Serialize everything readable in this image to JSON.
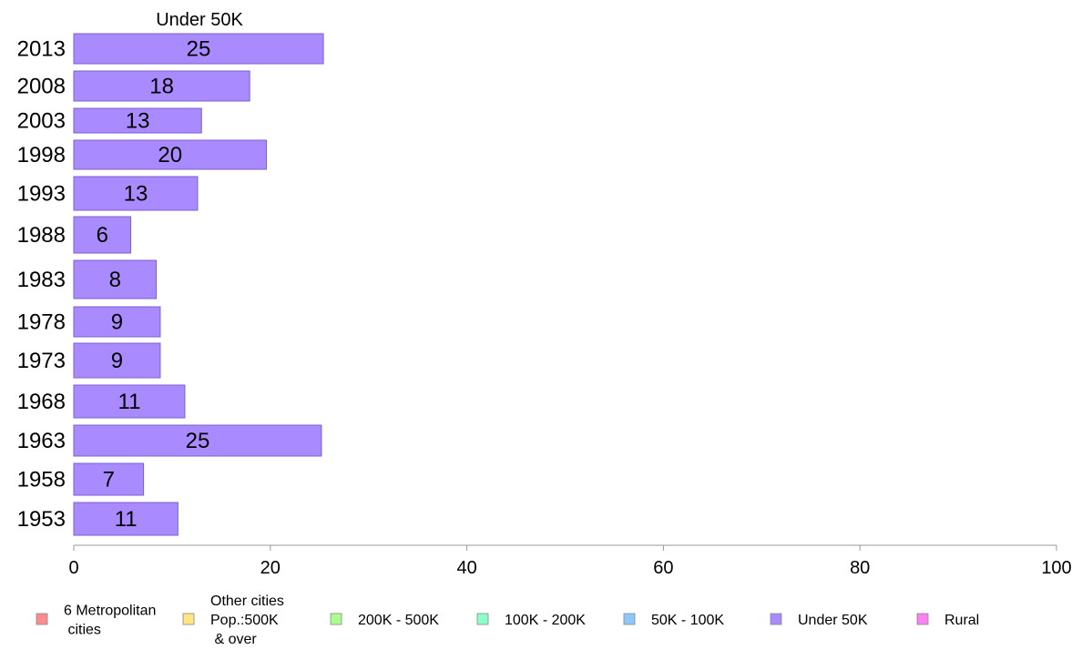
{
  "chart_data": {
    "type": "bar",
    "orientation": "horizontal",
    "title": "Under 50K",
    "categories": [
      "2013",
      "2008",
      "2003",
      "1998",
      "1993",
      "1988",
      "1983",
      "1978",
      "1973",
      "1968",
      "1963",
      "1958",
      "1953"
    ],
    "series": [
      {
        "name": "Under 50K",
        "values": [
          25,
          18,
          13,
          20,
          13,
          6,
          8,
          9,
          9,
          11,
          25,
          7,
          11
        ],
        "precise_values": [
          25.4,
          17.9,
          13.0,
          19.6,
          12.6,
          5.8,
          8.4,
          8.8,
          8.8,
          11.3,
          25.2,
          7.1,
          10.6
        ],
        "color": "#a98bff"
      }
    ],
    "data_labels": [
      "25",
      "18",
      "13",
      "20",
      "13",
      "6",
      "8",
      "9",
      "9",
      "11",
      "25",
      "7",
      "11"
    ],
    "xlim": [
      0,
      100
    ],
    "x_ticks": [
      0,
      20,
      40,
      60,
      80,
      100
    ],
    "xlabel": "",
    "ylabel": "",
    "grid": false,
    "legend": {
      "position": "bottom",
      "entries": [
        {
          "lines": [
            "6 Metropolitan",
            " cities"
          ],
          "color": "#ff8c8c"
        },
        {
          "lines": [
            "Other cities",
            "Pop.:500K",
            " & over"
          ],
          "color": "#ffe680"
        },
        {
          "lines": [
            "200K - 500K"
          ],
          "color": "#a8ff8c"
        },
        {
          "lines": [
            "100K - 200K"
          ],
          "color": "#8cffc8"
        },
        {
          "lines": [
            "50K - 100K"
          ],
          "color": "#8cc8ff"
        },
        {
          "lines": [
            "Under 50K"
          ],
          "color": "#a98bff"
        },
        {
          "lines": [
            "Rural"
          ],
          "color": "#ff80f0"
        }
      ]
    },
    "colors": {
      "bar_stroke": "#7a62d0",
      "axis": "#999999",
      "text": "#000000"
    }
  }
}
